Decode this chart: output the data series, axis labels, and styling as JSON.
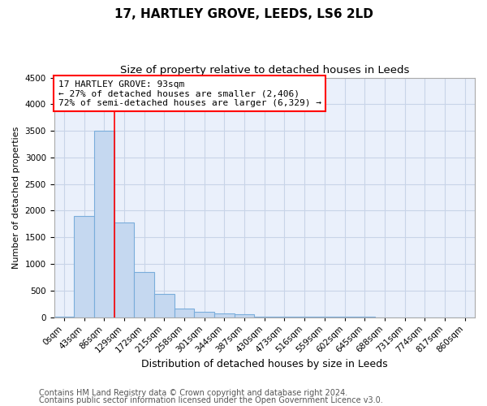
{
  "title1": "17, HARTLEY GROVE, LEEDS, LS6 2LD",
  "title2": "Size of property relative to detached houses in Leeds",
  "xlabel": "Distribution of detached houses by size in Leeds",
  "ylabel": "Number of detached properties",
  "categories": [
    "0sqm",
    "43sqm",
    "86sqm",
    "129sqm",
    "172sqm",
    "215sqm",
    "258sqm",
    "301sqm",
    "344sqm",
    "387sqm",
    "430sqm",
    "473sqm",
    "516sqm",
    "559sqm",
    "602sqm",
    "645sqm",
    "688sqm",
    "731sqm",
    "774sqm",
    "817sqm",
    "860sqm"
  ],
  "values": [
    5,
    1900,
    3500,
    1780,
    840,
    440,
    160,
    95,
    65,
    55,
    10,
    5,
    3,
    2,
    1,
    1,
    0,
    0,
    0,
    0,
    0
  ],
  "bar_color": "#c5d8f0",
  "bar_edge_color": "#7aaddb",
  "grid_color": "#c8d4e8",
  "background_color": "#eaf0fb",
  "red_line_x": 2.5,
  "annotation_text": "17 HARTLEY GROVE: 93sqm\n← 27% of detached houses are smaller (2,406)\n72% of semi-detached houses are larger (6,329) →",
  "annotation_box_color": "white",
  "annotation_box_edge": "red",
  "ylim": [
    0,
    4500
  ],
  "yticks": [
    0,
    500,
    1000,
    1500,
    2000,
    2500,
    3000,
    3500,
    4000,
    4500
  ],
  "footer1": "Contains HM Land Registry data © Crown copyright and database right 2024.",
  "footer2": "Contains public sector information licensed under the Open Government Licence v3.0.",
  "title1_fontsize": 11,
  "title2_fontsize": 9.5,
  "xlabel_fontsize": 9,
  "ylabel_fontsize": 8,
  "tick_fontsize": 7.5,
  "annotation_fontsize": 8,
  "footer_fontsize": 7
}
